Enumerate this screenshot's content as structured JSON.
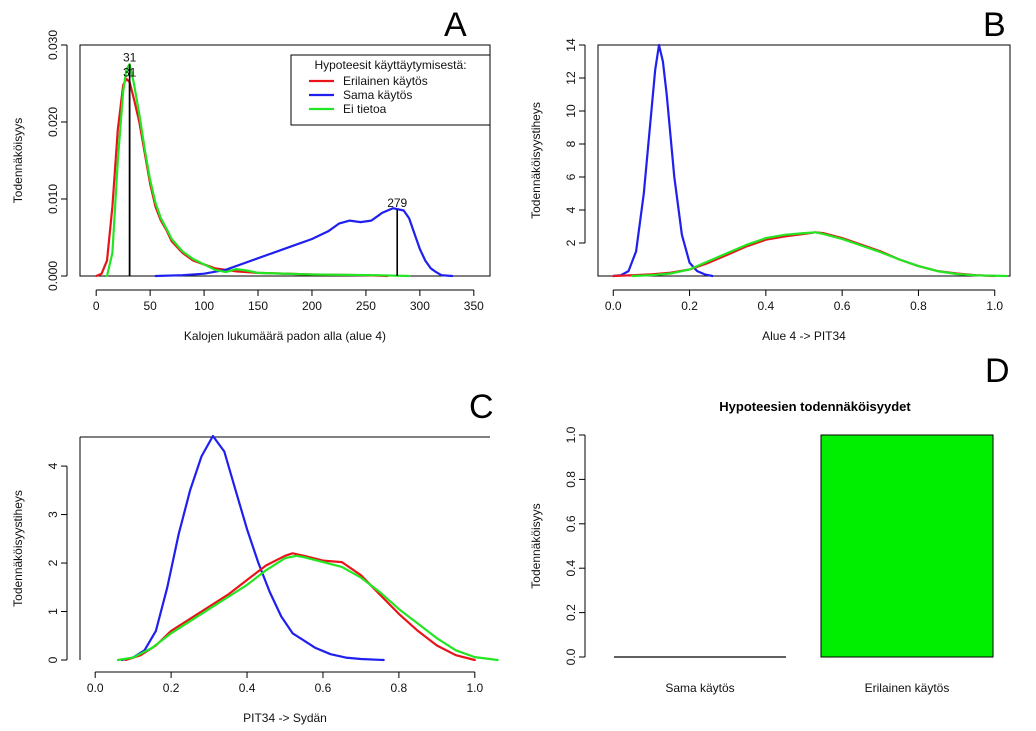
{
  "colors": {
    "red": "#e8141a",
    "blue": "#1f1fef",
    "green": "#22e622",
    "bar": "#00ee00",
    "axis": "#000000"
  },
  "chart_data": [
    {
      "panel_letter": "A",
      "type": "line",
      "xlabel": "Kalojen lukumäärä padon alla (alue 4)",
      "ylabel": "Todennäköisyys",
      "xlim": [
        -15,
        365
      ],
      "ylim": [
        0,
        0.03
      ],
      "xticks": [
        0,
        50,
        100,
        150,
        200,
        250,
        300,
        350
      ],
      "xtick_labels": [
        "0",
        "50",
        "100",
        "150",
        "200",
        "250",
        "300",
        "350"
      ],
      "yticks": [
        0,
        0.01,
        0.02,
        0.03
      ],
      "ytick_labels": [
        "0.000",
        "0.010",
        "0.020",
        "0.030"
      ],
      "legend": {
        "title": "Hypoteesit käyttäytymisestä:",
        "position": "top-right",
        "entries": [
          {
            "label": "Erilainen käytös",
            "color_key": "red"
          },
          {
            "label": "Sama käytös",
            "color_key": "blue"
          },
          {
            "label": "Ei tietoa",
            "color_key": "green"
          }
        ]
      },
      "vlines": [
        {
          "x": 31,
          "top": 0.0255,
          "label": "31"
        },
        {
          "x": 31,
          "top": 0.0275,
          "label": "31"
        },
        {
          "x": 279,
          "top": 0.0086,
          "label": "279"
        }
      ],
      "series": [
        {
          "name": "Erilainen käytös",
          "color_key": "red",
          "x": [
            0,
            5,
            10,
            15,
            20,
            25,
            28,
            31,
            35,
            40,
            45,
            50,
            55,
            60,
            65,
            70,
            80,
            90,
            100,
            110,
            120,
            130,
            150,
            200,
            250,
            270
          ],
          "y": [
            0,
            0.0003,
            0.002,
            0.009,
            0.019,
            0.0248,
            0.0256,
            0.0252,
            0.023,
            0.02,
            0.016,
            0.012,
            0.009,
            0.0072,
            0.006,
            0.0045,
            0.003,
            0.002,
            0.0015,
            0.001,
            0.0008,
            0.0006,
            0.0004,
            0.0002,
            0.0001,
            0
          ]
        },
        {
          "name": "Sama käytös",
          "color_key": "blue",
          "x": [
            55,
            80,
            100,
            120,
            140,
            160,
            180,
            200,
            215,
            225,
            235,
            245,
            255,
            265,
            275,
            285,
            290,
            295,
            300,
            305,
            310,
            315,
            320,
            330
          ],
          "y": [
            0,
            0.0001,
            0.0003,
            0.0008,
            0.0018,
            0.0028,
            0.0038,
            0.0048,
            0.0058,
            0.0068,
            0.0072,
            0.007,
            0.0072,
            0.0082,
            0.0088,
            0.0085,
            0.0075,
            0.0055,
            0.0035,
            0.002,
            0.001,
            0.0005,
            0.0001,
            0
          ]
        },
        {
          "name": "Ei tietoa",
          "color_key": "green",
          "x": [
            10,
            15,
            20,
            25,
            28,
            31,
            35,
            40,
            45,
            50,
            55,
            60,
            65,
            70,
            80,
            90,
            100,
            110,
            120,
            130,
            140,
            150,
            200,
            260,
            290
          ],
          "y": [
            0,
            0.003,
            0.015,
            0.024,
            0.0268,
            0.0275,
            0.025,
            0.021,
            0.0165,
            0.0125,
            0.0095,
            0.0075,
            0.0062,
            0.0048,
            0.0032,
            0.0022,
            0.0015,
            0.0008,
            0.0005,
            0.0009,
            0.0007,
            0.0004,
            0.0002,
            0.0001,
            0
          ]
        }
      ]
    },
    {
      "panel_letter": "B",
      "type": "line",
      "xlabel": "Alue 4 -> PIT34",
      "ylabel": "Todennäköisyystiheys",
      "xlim": [
        -0.04,
        1.04
      ],
      "ylim": [
        0,
        14
      ],
      "xticks": [
        0,
        0.2,
        0.4,
        0.6,
        0.8,
        1.0
      ],
      "xtick_labels": [
        "0.0",
        "0.2",
        "0.4",
        "0.6",
        "0.8",
        "1.0"
      ],
      "yticks": [
        2,
        4,
        6,
        8,
        10,
        12,
        14
      ],
      "ytick_labels": [
        "2",
        "4",
        "6",
        "8",
        "10",
        "12",
        "14"
      ],
      "series": [
        {
          "name": "Sama käytös",
          "color_key": "blue",
          "x": [
            0.0,
            0.02,
            0.04,
            0.06,
            0.08,
            0.1,
            0.11,
            0.12,
            0.13,
            0.14,
            0.16,
            0.18,
            0.2,
            0.22,
            0.24,
            0.26
          ],
          "y": [
            0,
            0.05,
            0.3,
            1.5,
            5.0,
            10.0,
            12.5,
            14.0,
            13.0,
            11.0,
            6.0,
            2.5,
            0.8,
            0.3,
            0.1,
            0
          ]
        },
        {
          "name": "Erilainen käytös",
          "color_key": "red",
          "x": [
            0.0,
            0.1,
            0.15,
            0.2,
            0.25,
            0.3,
            0.35,
            0.4,
            0.45,
            0.5,
            0.53,
            0.55,
            0.6,
            0.65,
            0.7,
            0.75,
            0.8,
            0.85,
            0.9,
            0.95,
            1.0
          ],
          "y": [
            0,
            0.1,
            0.2,
            0.4,
            0.8,
            1.3,
            1.8,
            2.2,
            2.4,
            2.55,
            2.65,
            2.6,
            2.3,
            1.9,
            1.5,
            1.0,
            0.6,
            0.3,
            0.15,
            0.05,
            0
          ]
        },
        {
          "name": "Ei tietoa",
          "color_key": "green",
          "x": [
            0.05,
            0.1,
            0.15,
            0.2,
            0.25,
            0.3,
            0.35,
            0.4,
            0.45,
            0.5,
            0.53,
            0.55,
            0.6,
            0.65,
            0.7,
            0.75,
            0.8,
            0.85,
            0.9,
            0.95,
            1.03
          ],
          "y": [
            0,
            0.05,
            0.15,
            0.4,
            0.9,
            1.4,
            1.9,
            2.3,
            2.5,
            2.6,
            2.65,
            2.55,
            2.25,
            1.85,
            1.45,
            1.0,
            0.6,
            0.3,
            0.12,
            0.04,
            0
          ]
        }
      ]
    },
    {
      "panel_letter": "C",
      "type": "line",
      "xlabel": "PIT34 -> Sydän",
      "ylabel": "Todennäköisyystiheys",
      "xlim": [
        -0.04,
        1.04
      ],
      "ylim": [
        0,
        4.6
      ],
      "xticks": [
        0,
        0.2,
        0.4,
        0.6,
        0.8,
        1.0
      ],
      "xtick_labels": [
        "0.0",
        "0.2",
        "0.4",
        "0.6",
        "0.8",
        "1.0"
      ],
      "yticks": [
        0,
        1,
        2,
        3,
        4
      ],
      "ytick_labels": [
        "0",
        "1",
        "2",
        "3",
        "4"
      ],
      "series": [
        {
          "name": "Sama käytös",
          "color_key": "blue",
          "x": [
            0.07,
            0.1,
            0.13,
            0.16,
            0.19,
            0.22,
            0.25,
            0.28,
            0.31,
            0.34,
            0.37,
            0.4,
            0.43,
            0.46,
            0.49,
            0.52,
            0.55,
            0.58,
            0.62,
            0.66,
            0.7,
            0.76
          ],
          "y": [
            0,
            0.05,
            0.2,
            0.6,
            1.5,
            2.6,
            3.5,
            4.2,
            4.62,
            4.3,
            3.5,
            2.7,
            2.0,
            1.4,
            0.9,
            0.55,
            0.4,
            0.25,
            0.12,
            0.05,
            0.02,
            0
          ]
        },
        {
          "name": "Erilainen käytös",
          "color_key": "red",
          "x": [
            0.08,
            0.12,
            0.16,
            0.2,
            0.25,
            0.3,
            0.35,
            0.4,
            0.45,
            0.5,
            0.52,
            0.55,
            0.6,
            0.65,
            0.7,
            0.75,
            0.8,
            0.85,
            0.9,
            0.95,
            1.0
          ],
          "y": [
            0,
            0.1,
            0.3,
            0.6,
            0.85,
            1.1,
            1.35,
            1.65,
            1.95,
            2.15,
            2.2,
            2.15,
            2.05,
            2.02,
            1.75,
            1.35,
            0.95,
            0.6,
            0.3,
            0.1,
            0
          ]
        },
        {
          "name": "Ei tietoa",
          "color_key": "green",
          "x": [
            0.06,
            0.1,
            0.15,
            0.2,
            0.25,
            0.3,
            0.35,
            0.4,
            0.45,
            0.5,
            0.53,
            0.55,
            0.6,
            0.65,
            0.7,
            0.75,
            0.8,
            0.85,
            0.9,
            0.95,
            1.0,
            1.06
          ],
          "y": [
            0,
            0.05,
            0.25,
            0.55,
            0.8,
            1.05,
            1.3,
            1.55,
            1.85,
            2.1,
            2.15,
            2.12,
            2.02,
            1.92,
            1.7,
            1.4,
            1.05,
            0.75,
            0.45,
            0.2,
            0.06,
            0
          ]
        }
      ]
    },
    {
      "panel_letter": "D",
      "type": "bar",
      "title": "Hypoteesien todennäköisyydet",
      "ylabel": "Todennäköisyys",
      "categories": [
        "Sama käytös",
        "Erilainen käytös"
      ],
      "values": [
        0,
        1.0
      ],
      "ylim": [
        0,
        1.0
      ],
      "yticks": [
        0,
        0.2,
        0.4,
        0.6,
        0.8,
        1.0
      ],
      "ytick_labels": [
        "0.0",
        "0.2",
        "0.4",
        "0.6",
        "0.8",
        "1.0"
      ],
      "bar_color_key": "bar"
    }
  ]
}
